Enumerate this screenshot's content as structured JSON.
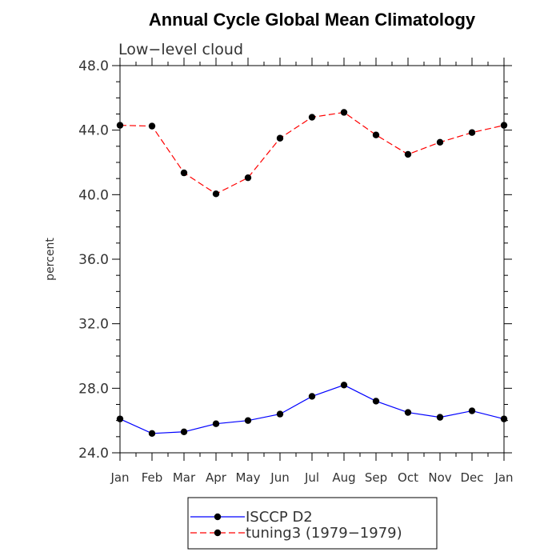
{
  "chart_data": {
    "type": "line",
    "title": "Annual Cycle Global Mean Climatology",
    "subtitle": "Low−level cloud",
    "ylabel": "percent",
    "xlabel": "",
    "ylim": [
      24.0,
      48.0
    ],
    "yticks": [
      "24.0",
      "28.0",
      "32.0",
      "36.0",
      "40.0",
      "44.0",
      "48.0"
    ],
    "ytick_values": [
      24,
      28,
      32,
      36,
      40,
      44,
      48
    ],
    "categories": [
      "Jan",
      "Feb",
      "Mar",
      "Apr",
      "May",
      "Jun",
      "Jul",
      "Aug",
      "Sep",
      "Oct",
      "Nov",
      "Dec",
      "Jan"
    ],
    "legend_position": "bottom",
    "grid": false,
    "series": [
      {
        "name": "ISCCP D2",
        "color": "#0000ff",
        "dash": "solid",
        "values": [
          26.1,
          25.2,
          25.3,
          25.8,
          26.0,
          26.4,
          27.5,
          28.2,
          27.2,
          26.5,
          26.2,
          26.6,
          26.1
        ]
      },
      {
        "name": "tuning3 (1979−1979)",
        "color": "#ff0000",
        "dash": "dashed",
        "values": [
          44.3,
          44.25,
          41.35,
          40.05,
          41.05,
          43.5,
          44.8,
          45.1,
          43.7,
          42.5,
          43.25,
          43.85,
          44.3
        ]
      }
    ]
  }
}
